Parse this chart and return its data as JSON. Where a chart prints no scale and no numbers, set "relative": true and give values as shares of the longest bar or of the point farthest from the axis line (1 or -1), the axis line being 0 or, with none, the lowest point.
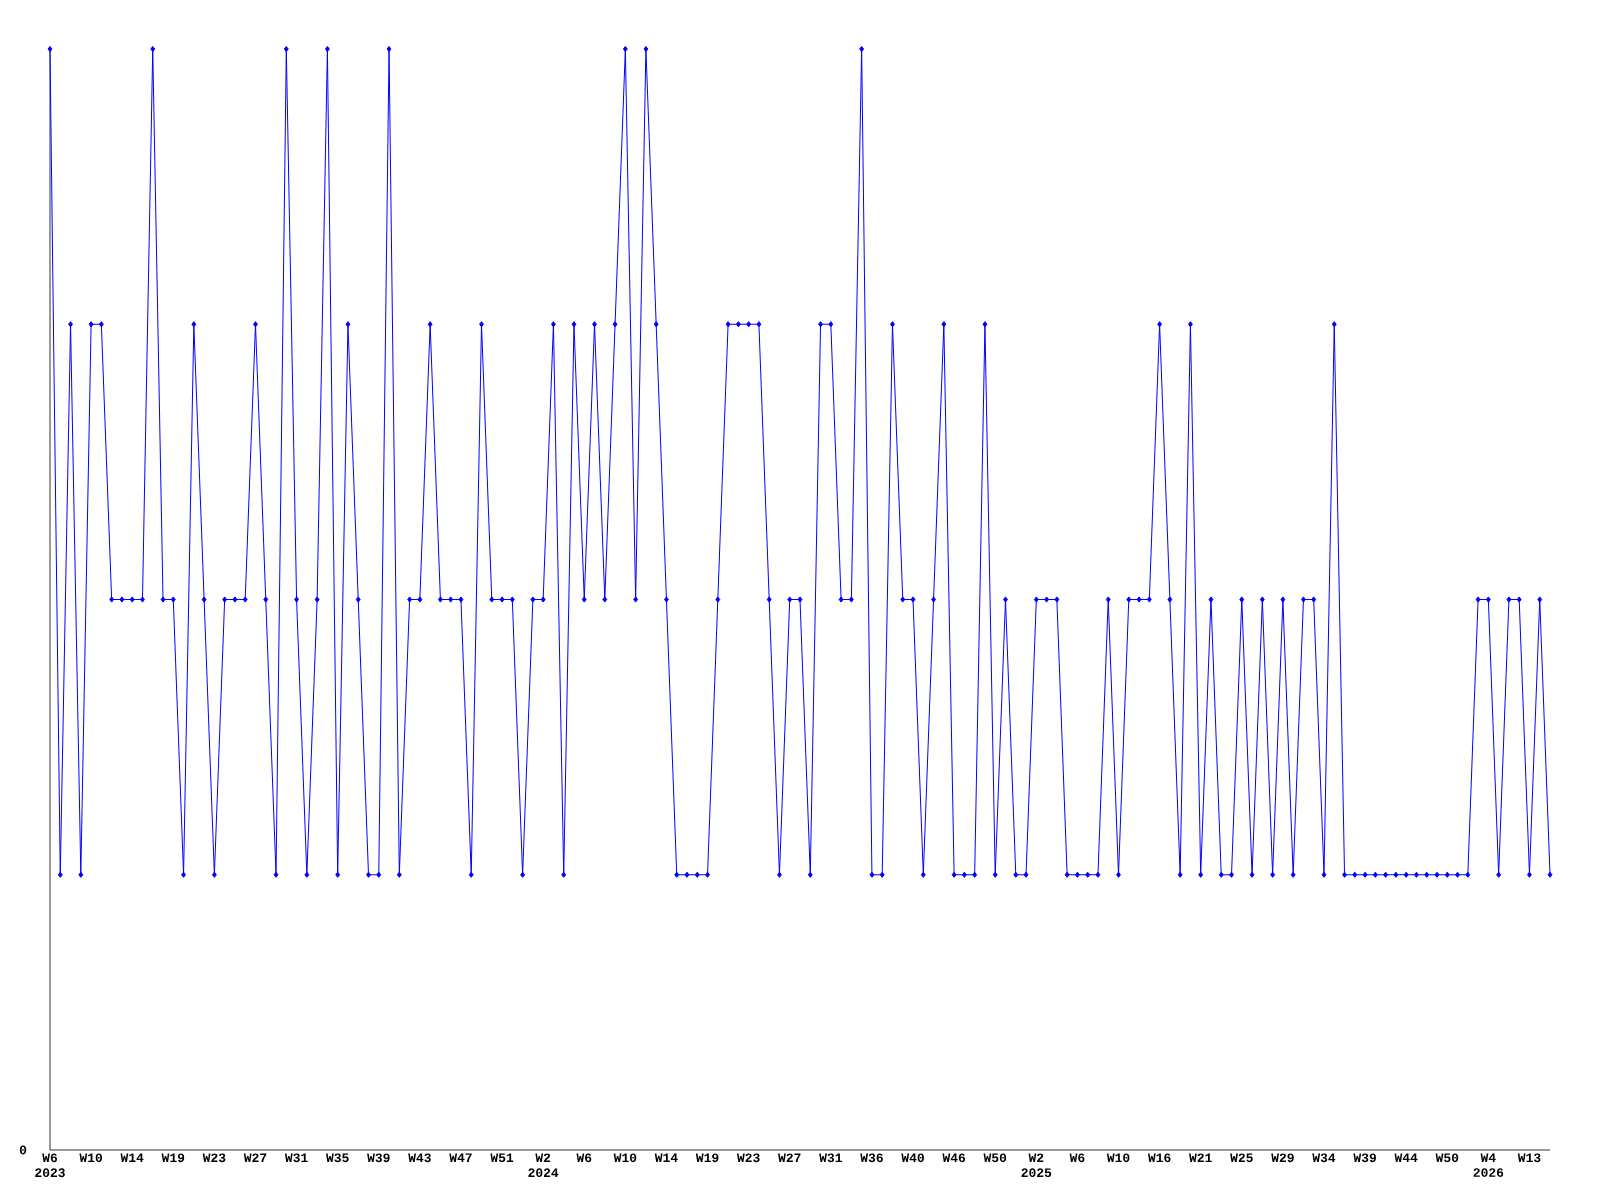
{
  "chart_data": {
    "type": "line",
    "relative": true,
    "color": "#0000ff",
    "marker": "diamond",
    "line_style": "solid",
    "categories": [
      "W6 2023",
      null,
      null,
      null,
      "W10",
      null,
      null,
      null,
      "W14",
      null,
      null,
      null,
      "W19",
      null,
      null,
      null,
      "W23",
      null,
      null,
      null,
      "W27",
      null,
      null,
      null,
      "W31",
      null,
      null,
      null,
      "W35",
      null,
      null,
      null,
      "W39",
      null,
      null,
      null,
      "W43",
      null,
      null,
      null,
      "W47",
      null,
      null,
      null,
      "W51",
      null,
      null,
      null,
      "W2 2024",
      null,
      null,
      null,
      "W6",
      null,
      null,
      null,
      "W10",
      null,
      null,
      null,
      "W14",
      null,
      null,
      null,
      "W19",
      null,
      null,
      null,
      "W23",
      null,
      null,
      null,
      "W27",
      null,
      null,
      null,
      "W31",
      null,
      null,
      null,
      "W36",
      null,
      null,
      null,
      "W40",
      null,
      null,
      null,
      "W46",
      null,
      null,
      null,
      "W50",
      null,
      null,
      null,
      "W2 2025",
      null,
      null,
      null,
      "W6",
      null,
      null,
      null,
      "W10",
      null,
      null,
      null,
      "W16",
      null,
      null,
      null,
      "W21",
      null,
      null,
      null,
      "W25",
      null,
      null,
      null,
      "W29",
      null,
      null,
      null,
      "W34",
      null,
      null,
      null,
      "W39",
      null,
      null,
      null,
      "W44",
      null,
      null,
      null,
      "W50",
      null,
      null,
      null,
      "W4 2026",
      null,
      null,
      null,
      "W13",
      null,
      null
    ],
    "values": [
      1,
      0.25,
      0.75,
      0.25,
      0.75,
      0.75,
      0.5,
      0.5,
      0.5,
      0.5,
      1,
      0.5,
      0.5,
      0.25,
      0.75,
      0.5,
      0.25,
      0.5,
      0.5,
      0.5,
      0.75,
      0.5,
      0.25,
      1,
      0.5,
      0.25,
      0.5,
      1,
      0.25,
      0.75,
      0.5,
      0.25,
      0.25,
      1,
      0.25,
      0.5,
      0.5,
      0.75,
      0.5,
      0.5,
      0.5,
      0.25,
      0.75,
      0.5,
      0.5,
      0.5,
      0.25,
      0.5,
      0.5,
      0.75,
      0.25,
      0.75,
      0.5,
      0.75,
      0.5,
      0.75,
      1,
      0.5,
      1,
      0.75,
      0.5,
      0.25,
      0.25,
      0.25,
      0.25,
      0.5,
      0.75,
      0.75,
      0.75,
      0.75,
      0.5,
      0.25,
      0.5,
      0.5,
      0.25,
      0.75,
      0.75,
      0.5,
      0.5,
      1,
      0.25,
      0.25,
      0.75,
      0.5,
      0.5,
      0.25,
      0.5,
      0.75,
      0.25,
      0.25,
      0.25,
      0.75,
      0.25,
      0.5,
      0.25,
      0.25,
      0.5,
      0.5,
      0.5,
      0.25,
      0.25,
      0.25,
      0.25,
      0.5,
      0.25,
      0.5,
      0.5,
      0.5,
      0.75,
      0.5,
      0.25,
      0.75,
      0.25,
      0.5,
      0.25,
      0.25,
      0.5,
      0.25,
      0.5,
      0.25,
      0.5,
      0.25,
      0.5,
      0.5,
      0.25,
      0.75,
      0.25,
      0.25,
      0.25,
      0.25,
      0.25,
      0.25,
      0.25,
      0.25,
      0.25,
      0.25,
      0.25,
      0.25,
      0.25,
      0.5,
      0.5,
      0.25,
      0.5,
      0.5,
      0.25,
      0.5,
      0.25
    ],
    "annotations": [
      "0"
    ]
  }
}
